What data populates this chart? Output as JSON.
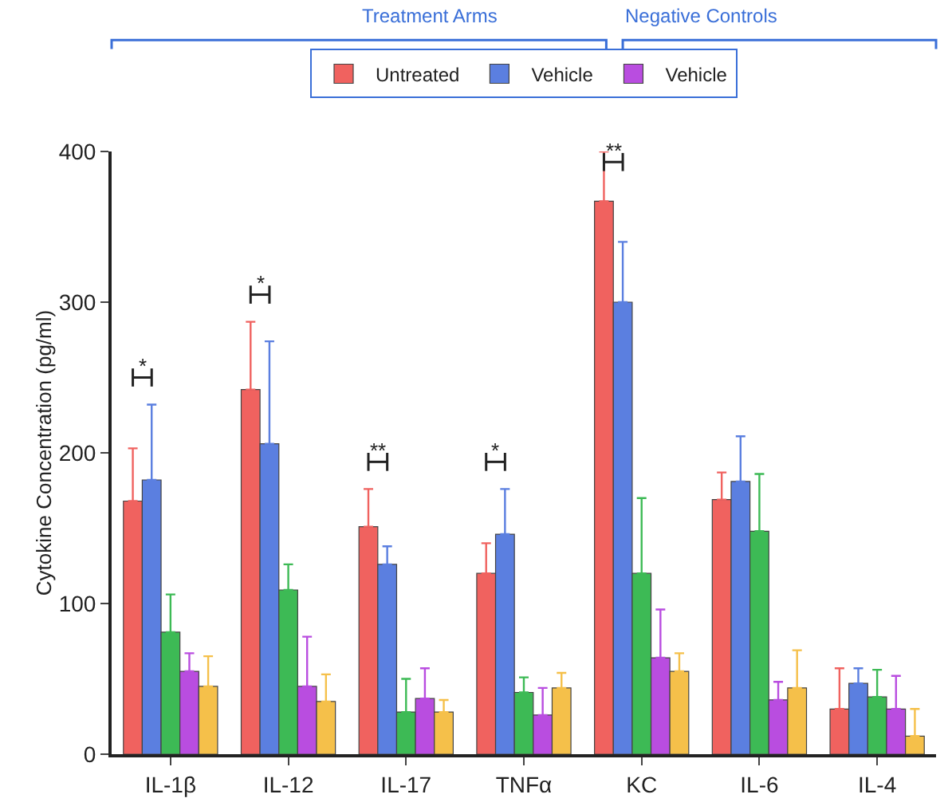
{
  "chart_data": {
    "type": "bar",
    "ylabel": "Cytokine Concentration (pg/ml)",
    "categories": [
      "IL-1β",
      "IL-12",
      "IL-17",
      "TNFα",
      "KC",
      "IL-6",
      "IL-4"
    ],
    "series": [
      {
        "name": "Untreated",
        "color": "#f0625f",
        "values": [
          168,
          242,
          151,
          120,
          367,
          169,
          30
        ],
        "errors": [
          [
            168,
            203
          ],
          [
            242,
            287
          ],
          [
            151,
            176
          ],
          [
            120,
            140
          ],
          [
            367,
            400
          ],
          [
            169,
            187
          ],
          [
            30,
            57
          ]
        ]
      },
      {
        "name": "Vehicle",
        "color": "#5b7fe0",
        "values": [
          182,
          206,
          126,
          146,
          300,
          181,
          47
        ],
        "errors": [
          [
            182,
            232
          ],
          [
            206,
            274
          ],
          [
            126,
            138
          ],
          [
            146,
            176
          ],
          [
            300,
            340
          ],
          [
            181,
            211
          ],
          [
            47,
            57
          ]
        ]
      },
      {
        "color": "#3dba55",
        "values": [
          81,
          109,
          28,
          41,
          120,
          148,
          38
        ],
        "errors": [
          [
            81,
            106
          ],
          [
            109,
            126
          ],
          [
            28,
            50
          ],
          [
            41,
            51
          ],
          [
            120,
            170
          ],
          [
            148,
            186
          ],
          [
            38,
            56
          ]
        ]
      },
      {
        "name": "Vehicle",
        "color": "#b94de0",
        "values": [
          55,
          45,
          37,
          26,
          64,
          36,
          30
        ],
        "errors": [
          [
            55,
            67
          ],
          [
            45,
            78
          ],
          [
            37,
            57
          ],
          [
            26,
            44
          ],
          [
            64,
            96
          ],
          [
            36,
            48
          ],
          [
            30,
            52
          ]
        ]
      },
      {
        "color": "#f5c04a",
        "values": [
          45,
          35,
          28,
          44,
          55,
          44,
          12
        ],
        "errors": [
          [
            45,
            65
          ],
          [
            35,
            53
          ],
          [
            28,
            36
          ],
          [
            44,
            54
          ],
          [
            55,
            67
          ],
          [
            44,
            69
          ],
          [
            12,
            30
          ]
        ]
      }
    ],
    "ylim": [
      0,
      400
    ],
    "yticks": [
      0,
      100,
      200,
      300,
      400
    ],
    "grid": false,
    "legend": "top",
    "annotations": [
      "*",
      "*",
      "**",
      "*",
      "**",
      "Treatment Arms",
      "Negative Controls"
    ]
  }
}
